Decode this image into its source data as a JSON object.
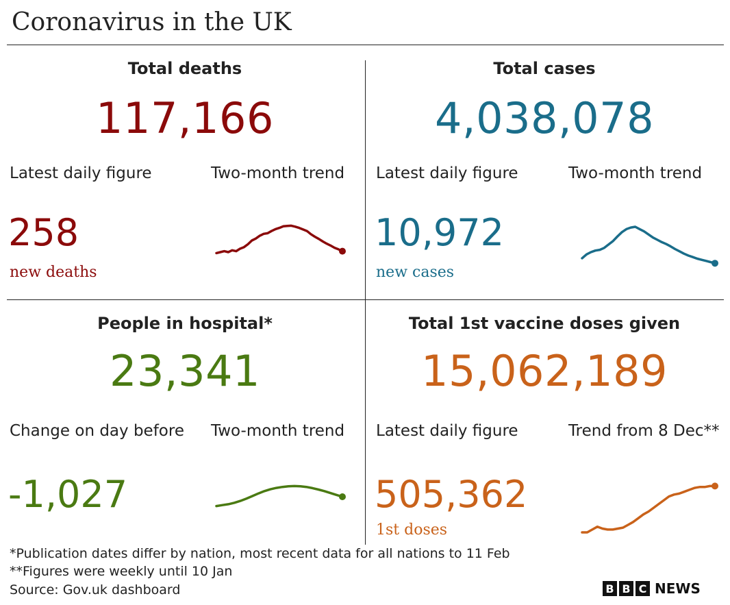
{
  "title": "Coronavirus in the UK",
  "colors": {
    "deaths": "#8b0a0a",
    "cases": "#1a6d8a",
    "hospital": "#4a7a12",
    "vaccine": "#c9621a",
    "rule": "#222222"
  },
  "panels": {
    "deaths": {
      "title": "Total deaths",
      "total": "117,166",
      "left_label": "Latest daily figure",
      "right_label": "Two-month trend",
      "daily_value": "258",
      "daily_caption": "new deaths"
    },
    "cases": {
      "title": "Total cases",
      "total": "4,038,078",
      "left_label": "Latest daily figure",
      "right_label": "Two-month trend",
      "daily_value": "10,972",
      "daily_caption": "new cases"
    },
    "hospital": {
      "title": "People in hospital*",
      "total": "23,341",
      "left_label": "Change on day before",
      "right_label": "Two-month trend",
      "daily_value": "-1,027",
      "daily_caption": ""
    },
    "vaccine": {
      "title": "Total 1st vaccine doses given",
      "total": "15,062,189",
      "left_label": "Latest daily figure",
      "right_label": "Trend from 8 Dec**",
      "daily_value": "505,362",
      "daily_caption": "1st doses"
    }
  },
  "footnotes": [
    "*Publication dates differ by nation, most recent data for all nations to 11 Feb",
    "**Figures were weekly until 10 Jan",
    "Source: Gov.uk dashboard"
  ],
  "logo": {
    "letters": [
      "B",
      "B",
      "C"
    ],
    "news": "NEWS"
  },
  "chart_data": [
    {
      "type": "line",
      "series": [
        {
          "values": [
            0.1,
            0.13,
            0.16,
            0.13,
            0.19,
            0.16,
            0.24,
            0.29,
            0.38,
            0.5,
            0.56,
            0.65,
            0.71,
            0.73,
            0.8,
            0.86,
            0.9,
            0.95,
            0.96,
            0.97,
            0.94,
            0.9,
            0.85,
            0.8,
            0.7,
            0.62,
            0.55,
            0.47,
            0.4,
            0.34,
            0.27,
            0.22,
            0.16
          ]
        }
      ],
      "ylim": [
        0,
        1
      ]
    },
    {
      "type": "line",
      "series": [
        {
          "values": [
            0.18,
            0.28,
            0.34,
            0.38,
            0.4,
            0.45,
            0.54,
            0.63,
            0.75,
            0.86,
            0.94,
            0.98,
            1.0,
            0.94,
            0.88,
            0.8,
            0.72,
            0.66,
            0.6,
            0.55,
            0.49,
            0.42,
            0.36,
            0.3,
            0.25,
            0.21,
            0.17,
            0.14,
            0.11,
            0.08,
            0.05
          ]
        }
      ],
      "ylim": [
        0,
        1
      ]
    },
    {
      "type": "line",
      "series": [
        {
          "values": [
            0.1,
            0.14,
            0.18,
            0.24,
            0.32,
            0.42,
            0.53,
            0.64,
            0.74,
            0.82,
            0.88,
            0.92,
            0.95,
            0.96,
            0.95,
            0.92,
            0.87,
            0.81,
            0.74,
            0.66,
            0.58,
            0.5
          ]
        }
      ],
      "ylim": [
        0,
        1
      ]
    },
    {
      "type": "line",
      "series": [
        {
          "values": [
            0.0,
            0.0,
            0.06,
            0.12,
            0.08,
            0.06,
            0.06,
            0.08,
            0.1,
            0.16,
            0.22,
            0.3,
            0.38,
            0.44,
            0.52,
            0.6,
            0.68,
            0.76,
            0.8,
            0.82,
            0.86,
            0.9,
            0.94,
            0.96,
            0.96,
            0.98,
            0.98
          ]
        }
      ],
      "ylim": [
        0,
        1
      ]
    }
  ]
}
